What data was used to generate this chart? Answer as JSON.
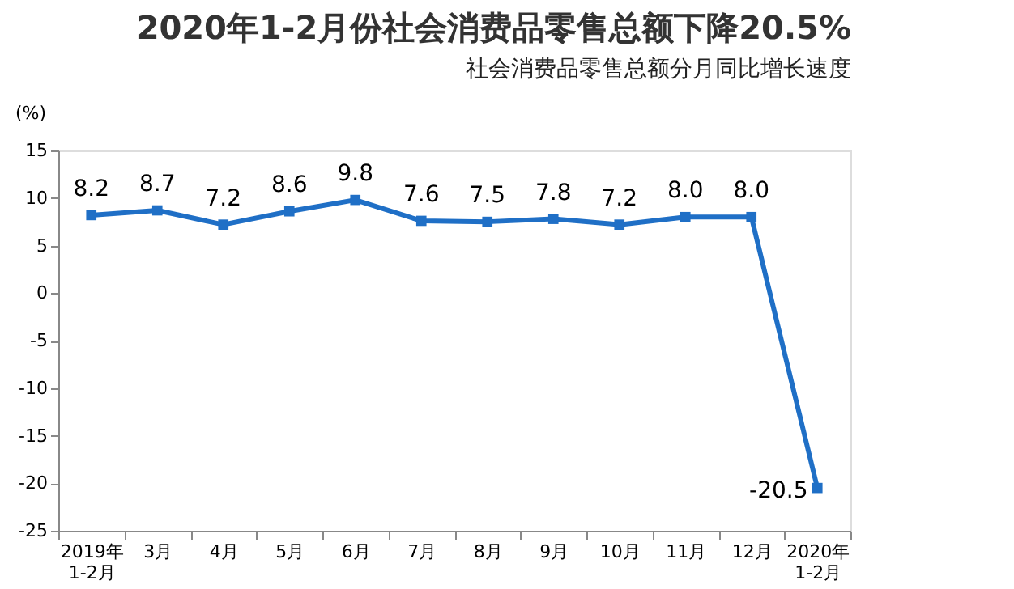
{
  "chart_data": {
    "type": "line",
    "title": "2020年1-2月份社会消费品零售总额下降20.5%",
    "subtitle": "社会消费品零售总额分月同比增长速度",
    "ylabel": "(%)",
    "categories": [
      "2019年\n1-2月",
      "3月",
      "4月",
      "5月",
      "6月",
      "7月",
      "8月",
      "9月",
      "10月",
      "11月",
      "12月",
      "2020年\n1-2月"
    ],
    "series": [
      {
        "color": "#1f6fc6",
        "values": [
          8.2,
          8.7,
          7.2,
          8.6,
          9.8,
          7.6,
          7.5,
          7.8,
          7.2,
          8.0,
          8.0,
          -20.5
        ]
      }
    ],
    "value_labels": [
      "8.2",
      "8.7",
      "7.2",
      "8.6",
      "9.8",
      "7.6",
      "7.5",
      "7.8",
      "7.2",
      "8.0",
      "8.0",
      "-20.5"
    ],
    "ylim": [
      -25,
      15
    ],
    "yticks": [
      -25,
      -20,
      -15,
      -10,
      -5,
      0,
      5,
      10,
      15
    ],
    "grid": false,
    "marker": "square",
    "line_style": "solid"
  }
}
